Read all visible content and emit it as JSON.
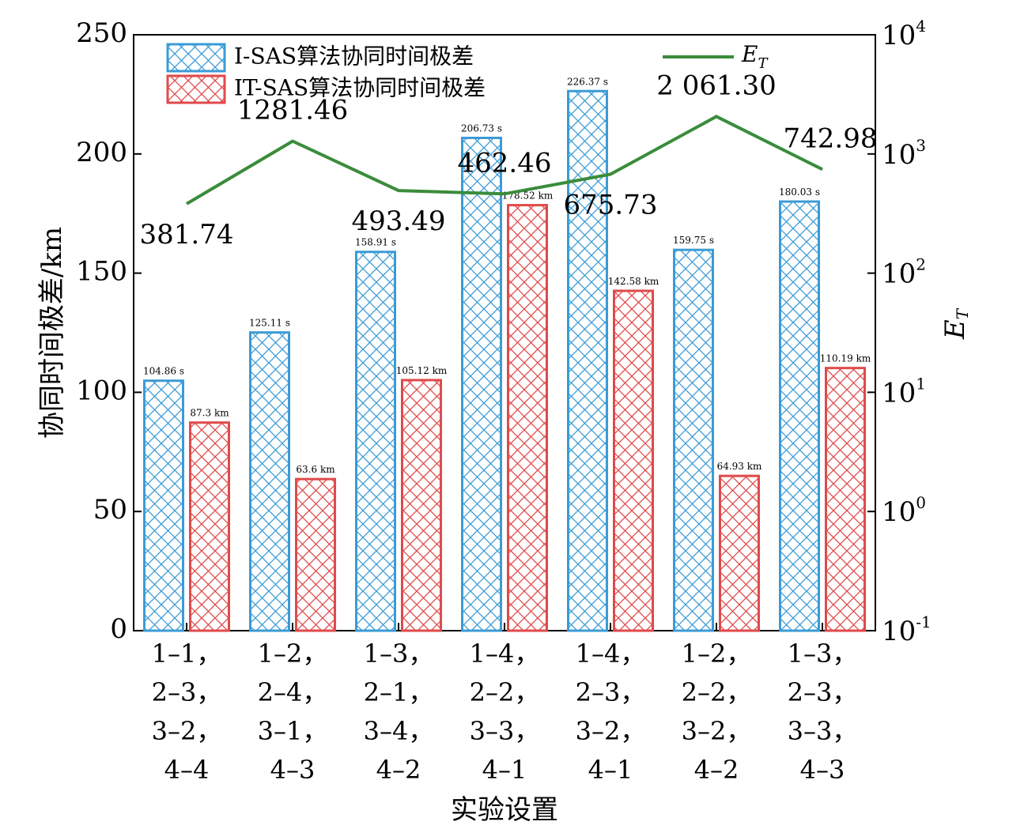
{
  "chart_data": {
    "type": "bar",
    "ylabel": "协同时间极差/km",
    "xlabel": "实验设置",
    "y2label": "E",
    "y2label_sub": "T",
    "ylim": [
      0,
      250
    ],
    "yticks": [
      "0",
      "50",
      "100",
      "150",
      "200",
      "250"
    ],
    "y2_scale": "log",
    "y2lim": [
      0.1,
      10000
    ],
    "y2ticks": [
      {
        "base": "10",
        "exp": "-1",
        "value": 0.1
      },
      {
        "base": "10",
        "exp": "0",
        "value": 1
      },
      {
        "base": "10",
        "exp": "1",
        "value": 10
      },
      {
        "base": "10",
        "exp": "2",
        "value": 100
      },
      {
        "base": "10",
        "exp": "3",
        "value": 1000
      },
      {
        "base": "10",
        "exp": "4",
        "value": 10000
      }
    ],
    "categories": [
      [
        "1–1，",
        "2–3，",
        "3–2，",
        "4–4"
      ],
      [
        "1–2，",
        "2–4，",
        "3–1，",
        "4–3"
      ],
      [
        "1–3，",
        "2–1，",
        "3–4，",
        "4–2"
      ],
      [
        "1–4，",
        "2–2，",
        "3–3，",
        "4–1"
      ],
      [
        "1–4，",
        "2–3，",
        "3–2，",
        "4–1"
      ],
      [
        "1–2，",
        "2–2，",
        "3–2，",
        "4–2"
      ],
      [
        "1–3，",
        "2–3，",
        "3–3，",
        "4–3"
      ]
    ],
    "series": [
      {
        "name": "I-SAS算法协同时间极差",
        "color": "#3b9bd6",
        "values": [
          104.86,
          125.11,
          158.91,
          206.73,
          226.37,
          159.75,
          180.03
        ],
        "labels": [
          "104.86 s",
          "125.11 s",
          "158.91 s",
          "206.73 s",
          "226.37 s",
          "159.75 s",
          "180.03 s"
        ]
      },
      {
        "name": "IT-SAS算法协同时间极差",
        "color": "#e04a4a",
        "values": [
          87.3,
          63.6,
          105.12,
          178.52,
          142.58,
          64.93,
          110.19
        ],
        "labels": [
          "87.3 km",
          "63.6 km",
          "105.12 km",
          "178.52 km",
          "142.58 km",
          "64.93 km",
          "110.19 km"
        ]
      }
    ],
    "line": {
      "name": "E",
      "name_sub": "T",
      "color": "#3a8c3a",
      "values": [
        381.74,
        1281.46,
        493.49,
        462.46,
        675.73,
        2061.3,
        742.98
      ],
      "labels": [
        "381.74",
        "1281.46",
        "493.49",
        "462.46",
        "675.73",
        "2 061.30",
        "742.98"
      ]
    }
  }
}
